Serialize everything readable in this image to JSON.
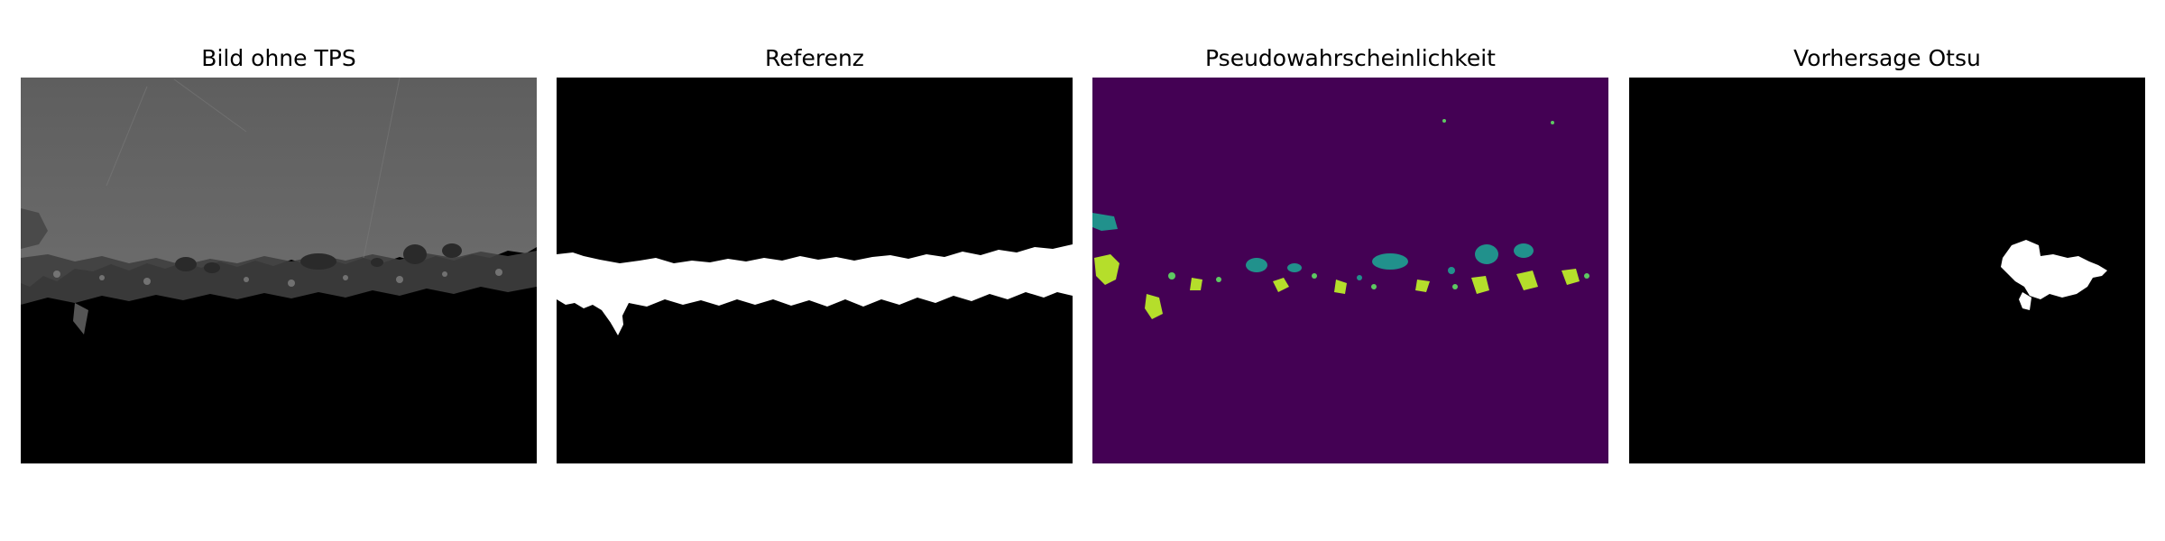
{
  "panels": [
    {
      "title": "Bild ohne TPS"
    },
    {
      "title": "Referenz"
    },
    {
      "title": "Pseudowahrscheinlichkeit"
    },
    {
      "title": "Vorhersage Otsu"
    }
  ],
  "colors": {
    "background": "#ffffff",
    "black": "#000000",
    "mask_white": "#ffffff",
    "micrograph_gray": "#6b6b6b",
    "viridis_low": "#440154",
    "viridis_mid": "#21918c",
    "viridis_high": "#b5de2b"
  }
}
